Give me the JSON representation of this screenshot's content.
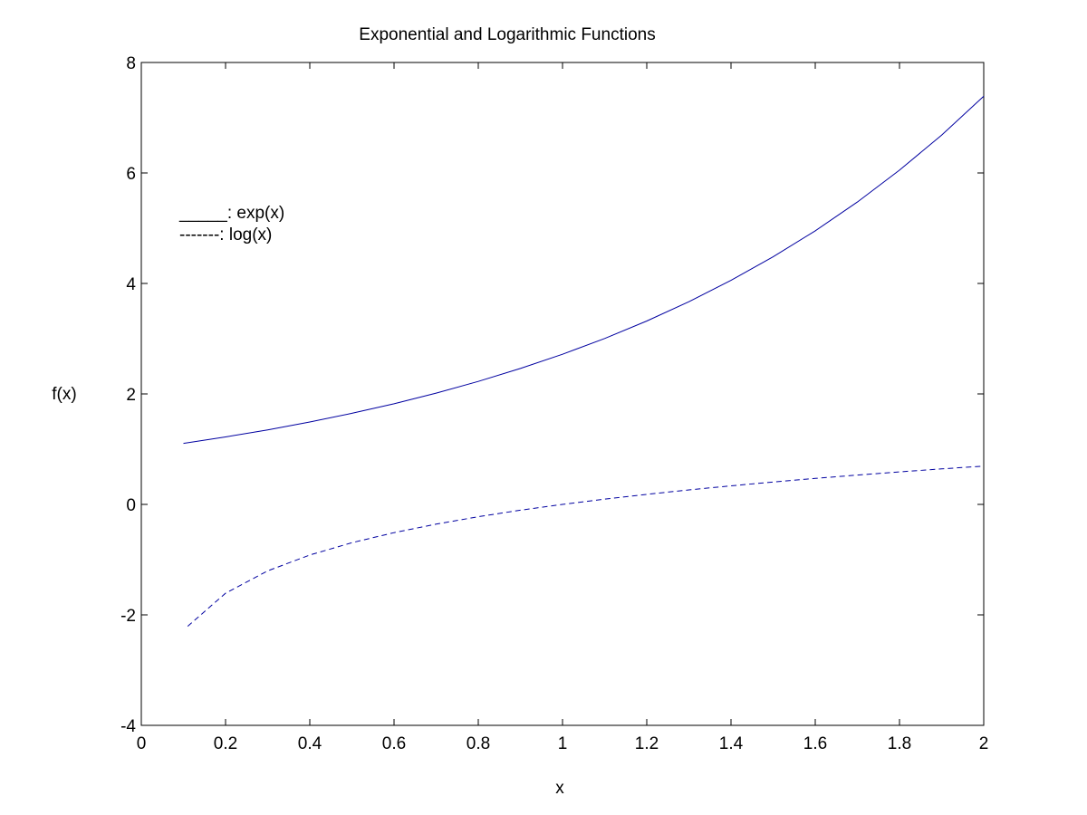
{
  "chart_data": {
    "type": "line",
    "title": "Exponential and Logarithmic Functions",
    "xlabel": "x",
    "ylabel": "f(x)",
    "xlim": [
      0,
      2
    ],
    "ylim": [
      -4,
      8
    ],
    "x_ticks": [
      0,
      0.2,
      0.4,
      0.6,
      0.8,
      1,
      1.2,
      1.4,
      1.6,
      1.8,
      2
    ],
    "x_tick_labels": [
      "0",
      "0.2",
      "0.4",
      "0.6",
      "0.8",
      "1",
      "1.2",
      "1.4",
      "1.6",
      "1.8",
      "2"
    ],
    "y_ticks": [
      -4,
      -2,
      0,
      2,
      4,
      6,
      8
    ],
    "y_tick_labels": [
      "-4",
      "-2",
      "0",
      "2",
      "4",
      "6",
      "8"
    ],
    "grid": false,
    "legend_placement": "top-left",
    "legend": [
      {
        "line_text": "_____",
        "label": ": exp(x)"
      },
      {
        "line_text": "-------",
        "label": ": log(x)"
      }
    ],
    "line_color": "#0000a0",
    "series": [
      {
        "style": "solid",
        "x": [
          0.1,
          0.2,
          0.3,
          0.4,
          0.5,
          0.6,
          0.7,
          0.8,
          0.9,
          1.0,
          1.1,
          1.2,
          1.3,
          1.4,
          1.5,
          1.6,
          1.7,
          1.8,
          1.9,
          2.0
        ],
        "y": [
          1.105,
          1.221,
          1.35,
          1.492,
          1.649,
          1.822,
          2.014,
          2.226,
          2.46,
          2.718,
          3.004,
          3.32,
          3.669,
          4.055,
          4.482,
          4.953,
          5.474,
          6.05,
          6.686,
          7.389
        ]
      },
      {
        "style": "dashed",
        "x": [
          0.11,
          0.2,
          0.3,
          0.4,
          0.5,
          0.6,
          0.7,
          0.8,
          0.9,
          1.0,
          1.1,
          1.2,
          1.3,
          1.4,
          1.5,
          1.6,
          1.7,
          1.8,
          1.9,
          2.0
        ],
        "y": [
          -2.207,
          -1.609,
          -1.204,
          -0.916,
          -0.693,
          -0.511,
          -0.357,
          -0.223,
          -0.105,
          0.0,
          0.095,
          0.182,
          0.262,
          0.336,
          0.405,
          0.47,
          0.531,
          0.588,
          0.642,
          0.693
        ]
      }
    ]
  }
}
